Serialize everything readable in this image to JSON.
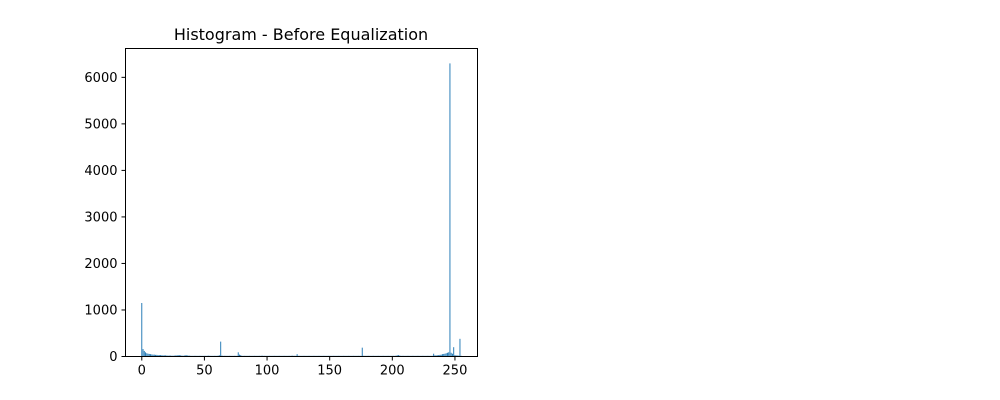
{
  "chart_data": {
    "type": "bar",
    "title": "Histogram - Before Equalization",
    "xlabel": "",
    "ylabel": "",
    "xlim": [
      -13,
      268
    ],
    "ylim": [
      0,
      6620
    ],
    "xticks": [
      0,
      50,
      100,
      150,
      200,
      250
    ],
    "yticks": [
      0,
      1000,
      2000,
      3000,
      4000,
      5000,
      6000
    ],
    "grid": false,
    "bar_color": "#1f77b4",
    "x": [
      0,
      1,
      2,
      3,
      4,
      5,
      6,
      7,
      8,
      9,
      10,
      11,
      12,
      13,
      14,
      15,
      16,
      17,
      18,
      19,
      20,
      21,
      22,
      23,
      24,
      25,
      26,
      27,
      28,
      29,
      30,
      31,
      32,
      33,
      34,
      35,
      36,
      37,
      38,
      39,
      40,
      41,
      42,
      43,
      44,
      45,
      46,
      47,
      48,
      49,
      50,
      51,
      52,
      53,
      54,
      55,
      56,
      57,
      58,
      59,
      60,
      61,
      62,
      63,
      64,
      65,
      66,
      67,
      68,
      69,
      70,
      71,
      72,
      73,
      74,
      75,
      76,
      77,
      78,
      79,
      80,
      81,
      82,
      83,
      84,
      85,
      86,
      87,
      88,
      89,
      90,
      91,
      92,
      93,
      94,
      95,
      96,
      97,
      98,
      99,
      100,
      101,
      102,
      103,
      104,
      105,
      106,
      107,
      108,
      109,
      110,
      111,
      112,
      113,
      114,
      115,
      116,
      117,
      118,
      119,
      120,
      121,
      122,
      123,
      124,
      125,
      126,
      127,
      128,
      129,
      130,
      131,
      132,
      133,
      134,
      135,
      136,
      137,
      138,
      139,
      140,
      141,
      142,
      143,
      144,
      145,
      146,
      147,
      148,
      149,
      150,
      151,
      152,
      153,
      154,
      155,
      156,
      157,
      158,
      159,
      160,
      161,
      162,
      163,
      164,
      165,
      166,
      167,
      168,
      169,
      170,
      171,
      172,
      173,
      174,
      175,
      176,
      177,
      178,
      179,
      180,
      181,
      182,
      183,
      184,
      185,
      186,
      187,
      188,
      189,
      190,
      191,
      192,
      193,
      194,
      195,
      196,
      197,
      198,
      199,
      200,
      201,
      202,
      203,
      204,
      205,
      206,
      207,
      208,
      209,
      210,
      211,
      212,
      213,
      214,
      215,
      216,
      217,
      218,
      219,
      220,
      221,
      222,
      223,
      224,
      225,
      226,
      227,
      228,
      229,
      230,
      231,
      232,
      233,
      234,
      235,
      236,
      237,
      238,
      239,
      240,
      241,
      242,
      243,
      244,
      245,
      246,
      247,
      248,
      249,
      250,
      251,
      252,
      253,
      254,
      255
    ],
    "values": [
      1150,
      160,
      120,
      90,
      70,
      60,
      55,
      50,
      45,
      40,
      40,
      35,
      35,
      30,
      30,
      30,
      28,
      25,
      25,
      25,
      22,
      20,
      20,
      20,
      18,
      18,
      20,
      22,
      25,
      30,
      28,
      25,
      20,
      18,
      22,
      25,
      30,
      20,
      18,
      15,
      15,
      15,
      15,
      15,
      15,
      15,
      15,
      15,
      15,
      15,
      15,
      15,
      15,
      20,
      15,
      15,
      15,
      15,
      15,
      15,
      15,
      20,
      25,
      320,
      20,
      15,
      15,
      15,
      15,
      15,
      15,
      15,
      15,
      15,
      15,
      15,
      15,
      90,
      40,
      30,
      15,
      15,
      15,
      15,
      15,
      15,
      15,
      15,
      15,
      15,
      15,
      15,
      15,
      15,
      15,
      15,
      20,
      15,
      15,
      15,
      15,
      15,
      15,
      15,
      15,
      15,
      15,
      15,
      15,
      15,
      15,
      15,
      15,
      15,
      15,
      15,
      15,
      15,
      15,
      15,
      20,
      15,
      15,
      15,
      50,
      15,
      15,
      15,
      15,
      15,
      15,
      15,
      15,
      15,
      15,
      15,
      15,
      15,
      15,
      15,
      15,
      15,
      15,
      15,
      15,
      15,
      15,
      15,
      15,
      15,
      15,
      15,
      15,
      15,
      15,
      15,
      15,
      15,
      15,
      15,
      15,
      15,
      15,
      15,
      15,
      15,
      15,
      15,
      15,
      15,
      15,
      15,
      15,
      15,
      15,
      15,
      190,
      15,
      15,
      15,
      15,
      15,
      15,
      15,
      15,
      15,
      15,
      15,
      15,
      15,
      15,
      15,
      15,
      15,
      15,
      15,
      15,
      15,
      15,
      15,
      15,
      15,
      15,
      20,
      25,
      30,
      20,
      15,
      15,
      15,
      15,
      15,
      15,
      15,
      15,
      15,
      15,
      15,
      15,
      15,
      15,
      15,
      15,
      15,
      15,
      15,
      15,
      15,
      15,
      15,
      15,
      15,
      15,
      60,
      25,
      25,
      25,
      30,
      35,
      40,
      50,
      55,
      60,
      70,
      80,
      90,
      6300,
      80,
      60,
      200,
      30,
      25,
      20,
      20,
      380,
      15
    ]
  }
}
